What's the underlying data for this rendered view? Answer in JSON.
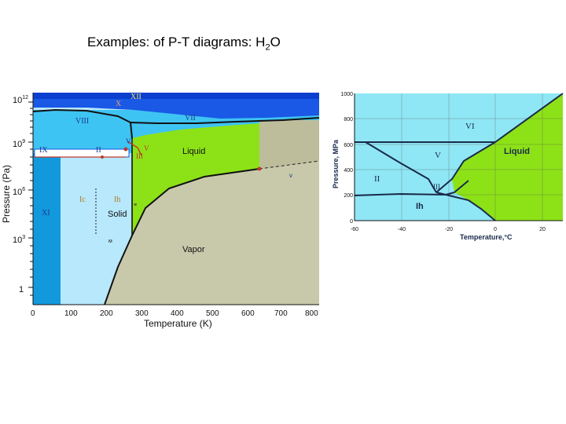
{
  "slide": {
    "title_main": "Examples: of P-T diagrams: H",
    "title_sub": "2",
    "title_end": "O"
  },
  "left_diagram": {
    "xlabel": "Temperature (K)",
    "ylabel": "Pressure (Pa)",
    "x_ticks": [
      "0",
      "100",
      "200",
      "300",
      "400",
      "500",
      "600",
      "700",
      "800"
    ],
    "y_ticks": [
      "10",
      "10",
      "10",
      "10",
      "1"
    ],
    "y_tick_exps": [
      "12",
      "9",
      "6",
      "3",
      ""
    ],
    "phases": {
      "XII": "XII",
      "X": "X",
      "VIII": "VIII",
      "VII": "VII",
      "VI": "VI",
      "IX": "IX",
      "II": "II",
      "V": "V",
      "III": "III",
      "Ic": "Ic",
      "Ih": "Ih",
      "XI": "XI",
      "Solid": "Solid",
      "Liquid": "Liquid",
      "Vapor": "Vapor"
    },
    "small_marks": {
      "mark1": "≡",
      "mark2": "м",
      "mark3": "v"
    },
    "colors": {
      "ice_light": "#b7e8fb",
      "ice_mid": "#3ec4f2",
      "ice_deep": "#1299dd",
      "ice_top": "#1a58e6",
      "liquid": "#8de217",
      "vapor": "#c8c9ab",
      "supercritical": "#bdbd9b"
    }
  },
  "right_diagram": {
    "xlabel": "Temperature,°C",
    "ylabel": "Pressure, MPa",
    "x_ticks": [
      "-60",
      "-40",
      "-20",
      "0",
      "20"
    ],
    "y_ticks": [
      "1000",
      "800",
      "600",
      "400",
      "200",
      "0"
    ],
    "phases": {
      "VI": "VI",
      "V": "V",
      "II": "II",
      "III": "III",
      "Ih": "Ih",
      "Liquid": "Liquid"
    },
    "colors": {
      "ice": "#8fe7f5",
      "liquid": "#8de217"
    }
  }
}
